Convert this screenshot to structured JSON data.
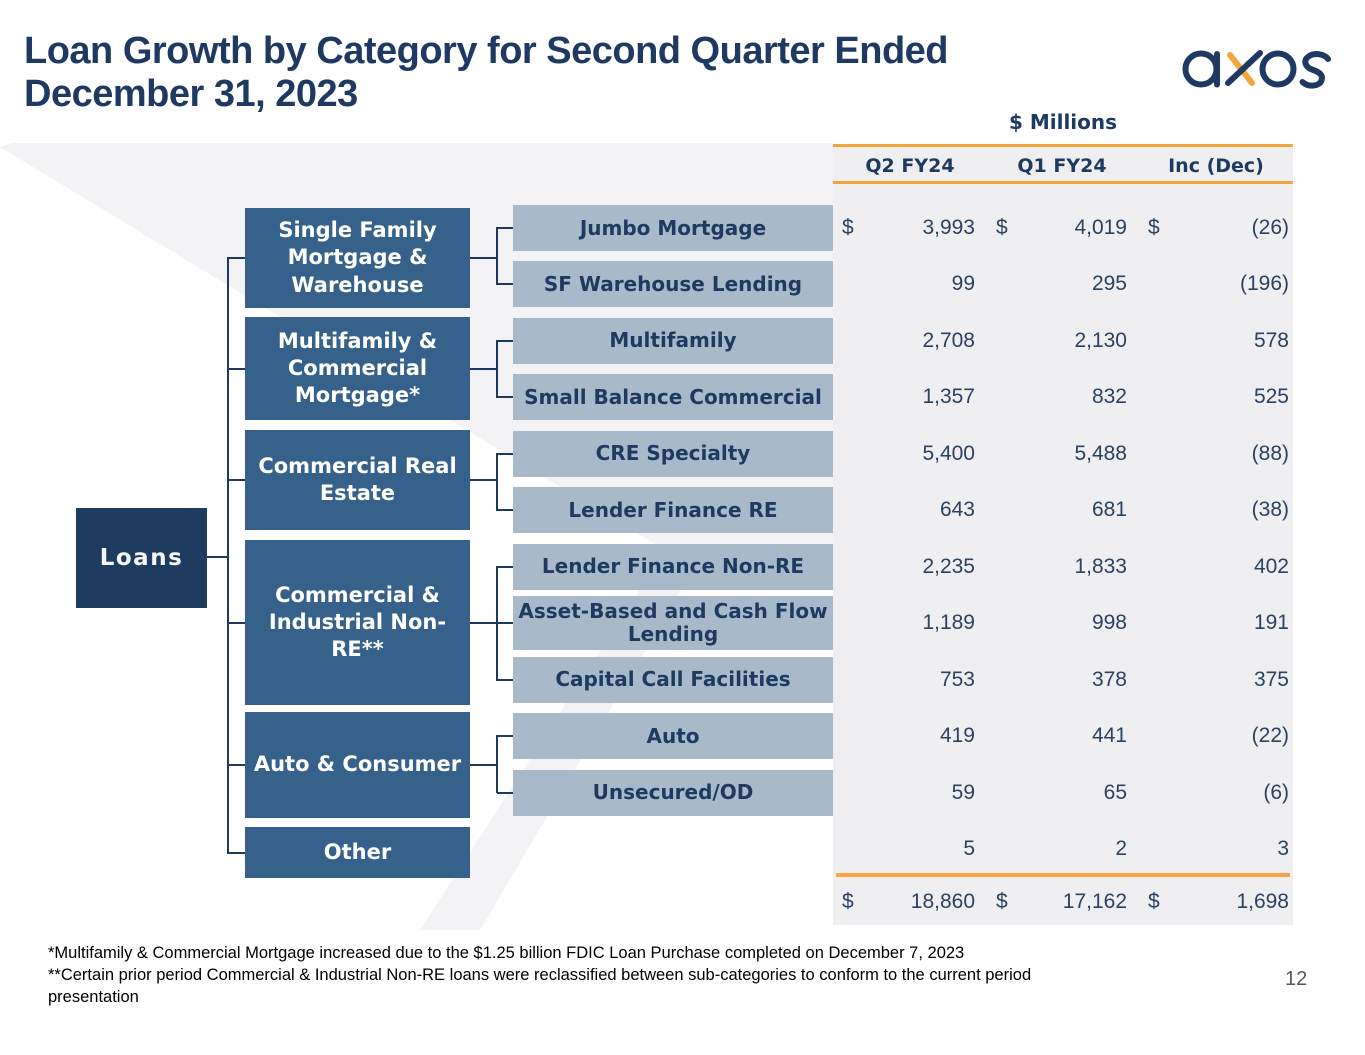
{
  "header": {
    "title": "Loan Growth by Category for Second Quarter Ended December 31, 2023",
    "logo_name": "axos"
  },
  "table": {
    "units_label": "$ Millions",
    "columns": [
      "Q2 FY24",
      "Q1 FY24",
      "Inc (Dec)"
    ],
    "currency_symbol": "$",
    "total": {
      "q2": "18,860",
      "q1": "17,162",
      "inc": "1,698",
      "dollar": true
    }
  },
  "tree": {
    "root": "Loans",
    "categories": [
      {
        "label": "Single Family Mortgage & Warehouse",
        "children": [
          0,
          1
        ]
      },
      {
        "label": "Multifamily & Commercial Mortgage*",
        "children": [
          2,
          3
        ]
      },
      {
        "label": "Commercial Real Estate",
        "children": [
          4,
          5
        ]
      },
      {
        "label": "Commercial & Industrial Non-RE**",
        "children": [
          6,
          7,
          8
        ]
      },
      {
        "label": "Auto & Consumer",
        "children": [
          9,
          10
        ]
      },
      {
        "label": "Other",
        "children": []
      }
    ]
  },
  "rows": [
    {
      "label": "Jumbo Mortgage",
      "q2": "3,993",
      "q1": "4,019",
      "inc": "(26)",
      "dollar": true
    },
    {
      "label": "SF Warehouse Lending",
      "q2": "99",
      "q1": "295",
      "inc": "(196)"
    },
    {
      "label": "Multifamily",
      "q2": "2,708",
      "q1": "2,130",
      "inc": "578"
    },
    {
      "label": "Small Balance Commercial",
      "q2": "1,357",
      "q1": "832",
      "inc": "525"
    },
    {
      "label": "CRE Specialty",
      "q2": "5,400",
      "q1": "5,488",
      "inc": "(88)"
    },
    {
      "label": "Lender Finance RE",
      "q2": "643",
      "q1": "681",
      "inc": "(38)"
    },
    {
      "label": "Lender Finance Non-RE",
      "q2": "2,235",
      "q1": "1,833",
      "inc": "402"
    },
    {
      "label": "Asset-Based and Cash Flow Lending",
      "q2": "1,189",
      "q1": "998",
      "inc": "191"
    },
    {
      "label": "Capital Call Facilities",
      "q2": "753",
      "q1": "378",
      "inc": "375"
    },
    {
      "label": "Auto",
      "q2": "419",
      "q1": "441",
      "inc": "(22)"
    },
    {
      "label": "Unsecured/OD",
      "q2": "59",
      "q1": "65",
      "inc": "(6)"
    },
    {
      "label": null,
      "q2": "5",
      "q1": "2",
      "inc": "3"
    }
  ],
  "footnotes": [
    "*Multifamily & Commercial Mortgage increased due to the $1.25 billion FDIC Loan Purchase completed on December 7, 2023",
    "**Certain prior period Commercial & Industrial Non-RE loans were reclassified between sub-categories to conform to the current period presentation"
  ],
  "page_number": "12",
  "colors": {
    "accent_orange": "#f4a53d",
    "title_navy": "#1e3a63",
    "root_box": "#1e3c60",
    "category_box": "#35618a",
    "subcategory_box": "#a8b9ca",
    "panel_gray": "#efeff1"
  }
}
